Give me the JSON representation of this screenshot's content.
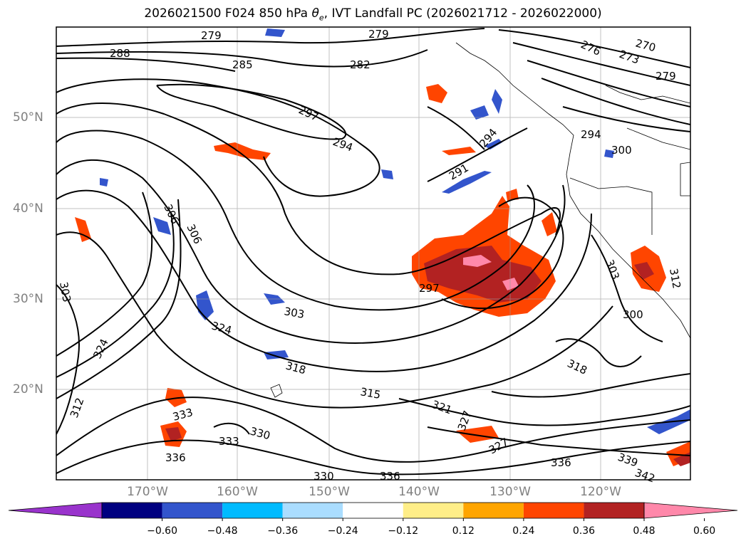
{
  "title": "2026021500 F024 850 hPa θe, IVT Landfall PC (2026021712 - 2026022000)",
  "title_parts": {
    "prefix": "2026021500 F024 850 hPa ",
    "theta": "θ",
    "sub": "e",
    "suffix": ", IVT Landfall PC (2026021712 - 2026022000)"
  },
  "lat_labels": [
    "50°N",
    "40°N",
    "30°N",
    "20°N"
  ],
  "lon_labels": [
    "170°W",
    "160°W",
    "150°W",
    "140°W",
    "130°W",
    "120°W"
  ],
  "colorbar": {
    "ticks": [
      "−0.60",
      "−0.48",
      "−0.36",
      "−0.24",
      "−0.12",
      "0.12",
      "0.24",
      "0.36",
      "0.48",
      "0.60"
    ],
    "colors": [
      "#9933cc",
      "#000080",
      "#3355cc",
      "#00bbff",
      "#aaddff",
      "#ffffff",
      "#ffee88",
      "#ffa500",
      "#ff4500",
      "#b22222",
      "#ff88aa"
    ]
  },
  "contour_labels": [
    "279",
    "279",
    "285",
    "288",
    "282",
    "276",
    "273",
    "270",
    "279",
    "297",
    "294",
    "294",
    "294",
    "291",
    "300",
    "306",
    "306",
    "303",
    "303",
    "297",
    "303",
    "300",
    "312",
    "324",
    "324",
    "318",
    "312",
    "315",
    "321",
    "327",
    "318",
    "333",
    "330",
    "333",
    "336",
    "330",
    "336",
    "327",
    "336",
    "339",
    "342"
  ]
}
